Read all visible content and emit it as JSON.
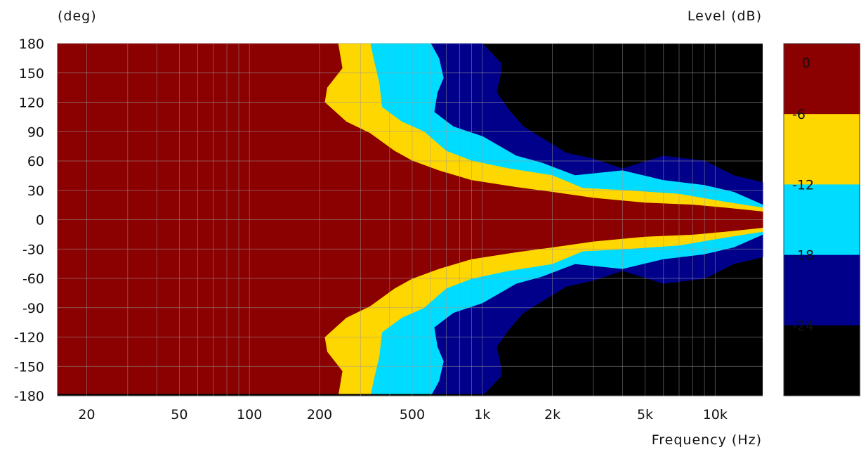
{
  "chart_data": {
    "type": "heatmap",
    "title": "",
    "xlabel": "Frequency (Hz)",
    "ylabel": "(deg)",
    "colorbar_label": "Level (dB)",
    "x_scale": "log",
    "xlim": [
      15,
      16000
    ],
    "ylim": [
      -180,
      180
    ],
    "x_ticks": [
      20,
      50,
      100,
      200,
      500,
      1000,
      2000,
      5000,
      10000
    ],
    "x_tick_labels": [
      "20",
      "50",
      "100",
      "200",
      "500",
      "1k",
      "2k",
      "5k",
      "10k"
    ],
    "y_ticks": [
      180,
      150,
      120,
      90,
      60,
      30,
      0,
      -30,
      -60,
      -90,
      -120,
      -150,
      -180
    ],
    "y_tick_labels": [
      "180",
      "150",
      "120",
      "90",
      "60",
      "30",
      "0",
      "-30",
      "-60",
      "-90",
      "-120",
      "-150",
      "-180"
    ],
    "levels": [
      {
        "label": "0",
        "range_db": [
          -6,
          0
        ],
        "color": "#8b0000"
      },
      {
        "label": "-6",
        "range_db": [
          -12,
          -6
        ],
        "color": "#ffd700"
      },
      {
        "label": "-12",
        "range_db": [
          -18,
          -12
        ],
        "color": "#00dcff"
      },
      {
        "label": "-18",
        "range_db": [
          -24,
          -18
        ],
        "color": "#00008b"
      },
      {
        "label": "-24",
        "range_db": [
          -30,
          -24
        ],
        "color": "#000000"
      }
    ],
    "boundaries_note": "symmetric about 0 deg; angle (deg) where level first drops below each threshold",
    "contours": [
      {
        "threshold_db": -6,
        "points": [
          [
            15,
            180
          ],
          [
            240,
            180
          ],
          [
            250,
            155
          ],
          [
            215,
            135
          ],
          [
            210,
            120
          ],
          [
            260,
            100
          ],
          [
            330,
            88
          ],
          [
            420,
            70
          ],
          [
            500,
            60
          ],
          [
            650,
            50
          ],
          [
            900,
            40
          ],
          [
            1400,
            33
          ],
          [
            2000,
            28
          ],
          [
            3000,
            22
          ],
          [
            5000,
            17
          ],
          [
            8000,
            15
          ],
          [
            11000,
            12
          ],
          [
            16000,
            8
          ]
        ]
      },
      {
        "threshold_db": -12,
        "points": [
          [
            15,
            180
          ],
          [
            330,
            180
          ],
          [
            340,
            165
          ],
          [
            360,
            140
          ],
          [
            370,
            115
          ],
          [
            450,
            100
          ],
          [
            560,
            90
          ],
          [
            700,
            70
          ],
          [
            900,
            60
          ],
          [
            1300,
            52
          ],
          [
            2000,
            45
          ],
          [
            2700,
            32
          ],
          [
            4000,
            30
          ],
          [
            7000,
            26
          ],
          [
            11000,
            18
          ],
          [
            16000,
            12
          ]
        ]
      },
      {
        "threshold_db": -18,
        "points": [
          [
            15,
            180
          ],
          [
            600,
            180
          ],
          [
            650,
            165
          ],
          [
            680,
            145
          ],
          [
            640,
            130
          ],
          [
            620,
            110
          ],
          [
            750,
            95
          ],
          [
            1000,
            85
          ],
          [
            1400,
            65
          ],
          [
            1800,
            58
          ],
          [
            2500,
            45
          ],
          [
            4000,
            50
          ],
          [
            6000,
            40
          ],
          [
            9000,
            35
          ],
          [
            12000,
            28
          ],
          [
            16000,
            15
          ]
        ]
      },
      {
        "threshold_db": -24,
        "points": [
          [
            15,
            180
          ],
          [
            1000,
            180
          ],
          [
            1200,
            160
          ],
          [
            1200,
            150
          ],
          [
            1150,
            130
          ],
          [
            1300,
            112
          ],
          [
            1500,
            95
          ],
          [
            1900,
            80
          ],
          [
            2300,
            68
          ],
          [
            3000,
            62
          ],
          [
            4000,
            52
          ],
          [
            6000,
            65
          ],
          [
            9000,
            60
          ],
          [
            12000,
            45
          ],
          [
            16000,
            38
          ]
        ]
      }
    ]
  }
}
